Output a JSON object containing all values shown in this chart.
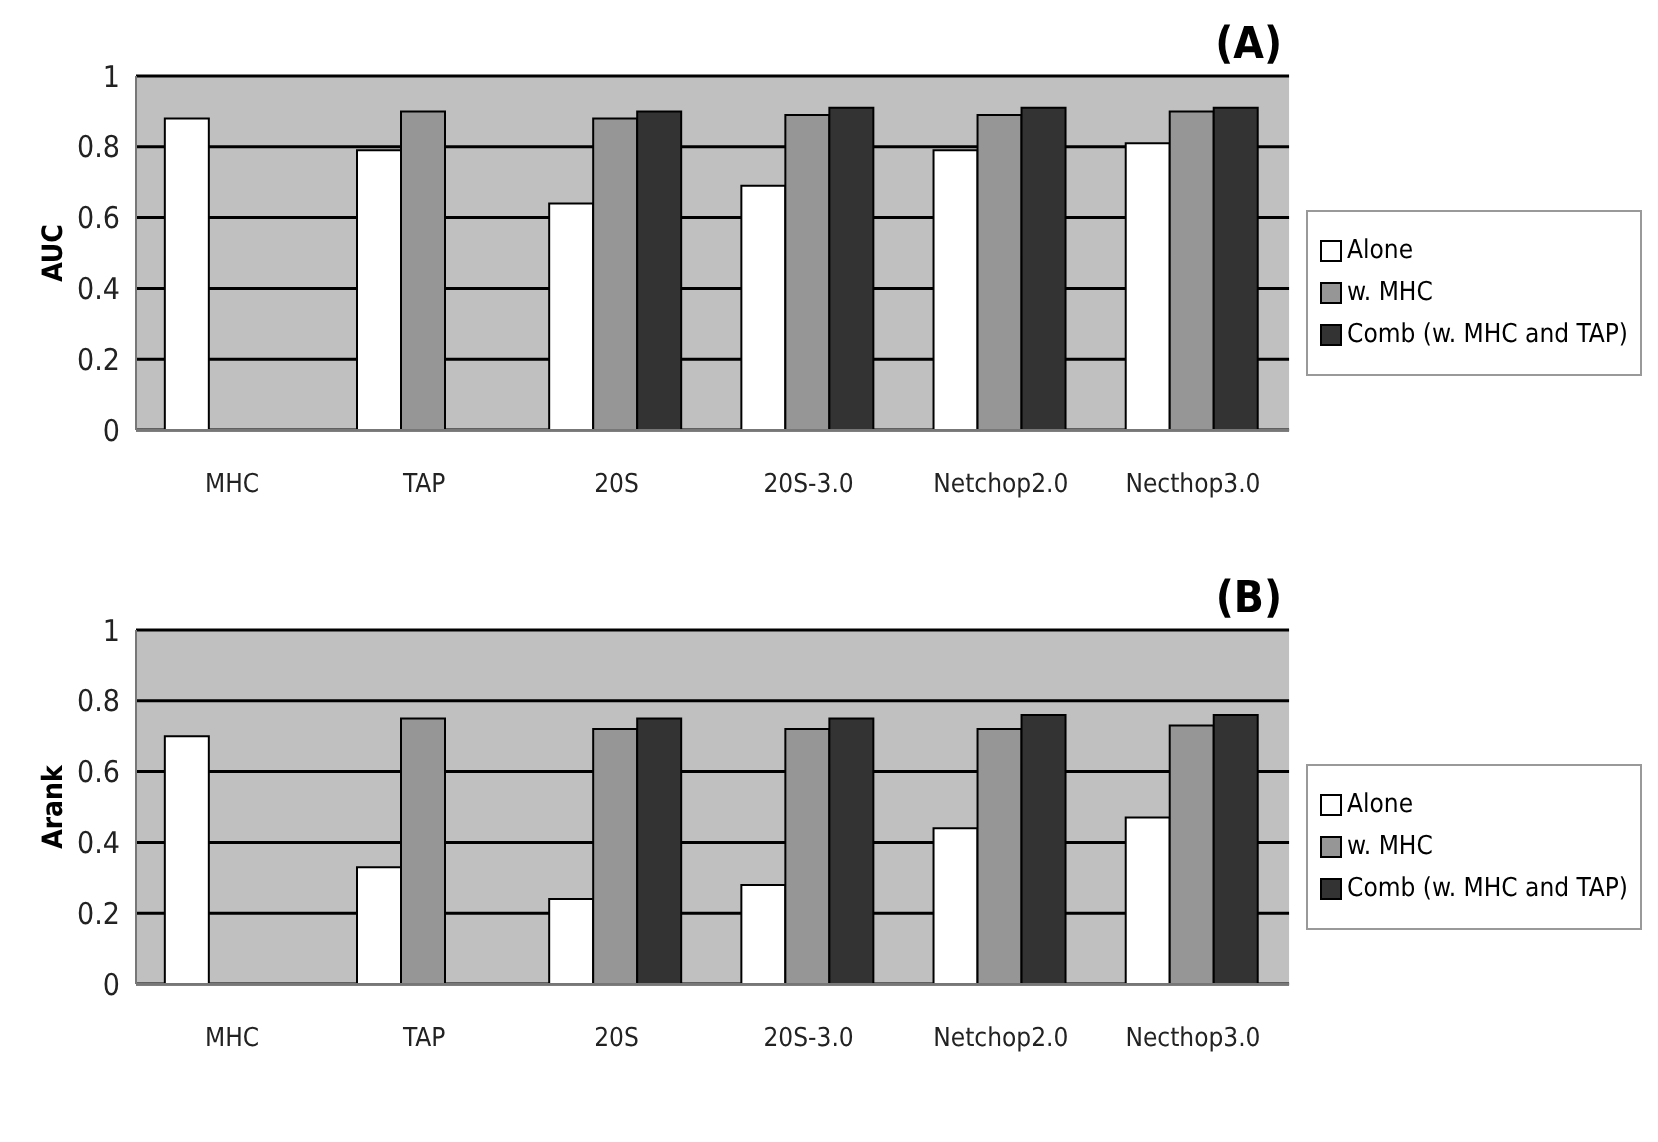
{
  "chart_data": [
    {
      "type": "bar",
      "title": "(A)",
      "ylabel": "AUC",
      "categories": [
        "MHC",
        "TAP",
        "20S",
        "20S-3.0",
        "Netchop2.0",
        "Necthop3.0"
      ],
      "series": [
        {
          "name": "Alone",
          "color": "#ffffff",
          "values": [
            0.88,
            0.79,
            0.64,
            0.69,
            0.79,
            0.81
          ]
        },
        {
          "name": "w. MHC",
          "color": "#969696",
          "values": [
            null,
            0.9,
            0.88,
            0.89,
            0.89,
            0.9
          ]
        },
        {
          "name": "Comb (w. MHC and TAP)",
          "color": "#333333",
          "values": [
            null,
            null,
            0.9,
            0.91,
            0.91,
            0.91
          ]
        }
      ],
      "ylim": [
        0,
        1
      ],
      "yticks": [
        0,
        0.2,
        0.4,
        0.6,
        0.8,
        1
      ],
      "grid": "y",
      "legend": "right"
    },
    {
      "type": "bar",
      "title": "(B)",
      "ylabel": "Arank",
      "categories": [
        "MHC",
        "TAP",
        "20S",
        "20S-3.0",
        "Netchop2.0",
        "Necthop3.0"
      ],
      "series": [
        {
          "name": "Alone",
          "color": "#ffffff",
          "values": [
            0.7,
            0.33,
            0.24,
            0.28,
            0.44,
            0.47
          ]
        },
        {
          "name": "w. MHC",
          "color": "#969696",
          "values": [
            null,
            0.75,
            0.72,
            0.72,
            0.72,
            0.73
          ]
        },
        {
          "name": "Comb (w. MHC and TAP)",
          "color": "#333333",
          "values": [
            null,
            null,
            0.75,
            0.75,
            0.76,
            0.76
          ]
        }
      ],
      "ylim": [
        0,
        1
      ],
      "yticks": [
        0,
        0.2,
        0.4,
        0.6,
        0.8,
        1
      ],
      "grid": "y",
      "legend": "right"
    }
  ]
}
